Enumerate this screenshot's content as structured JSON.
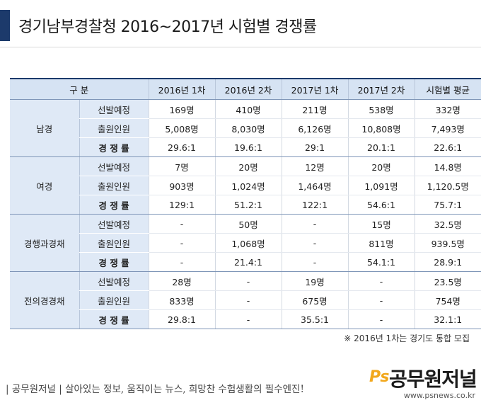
{
  "title": "경기남부경찰청 2016~2017년 시험별 경쟁률",
  "colors": {
    "accent": "#1c3a6b",
    "header_bg": "#d6e3f3",
    "group_bg": "#dfe9f6",
    "logo_orange": "#f2a81d"
  },
  "table": {
    "headers": [
      "구  분",
      "2016년 1차",
      "2016년 2차",
      "2017년 1차",
      "2017년 2차",
      "시험별 평균"
    ],
    "groups": [
      {
        "name": "남경",
        "rows": [
          {
            "label": "선발예정",
            "values": [
              "169명",
              "410명",
              "211명",
              "538명",
              "332명"
            ]
          },
          {
            "label": "출원인원",
            "values": [
              "5,008명",
              "8,030명",
              "6,126명",
              "10,808명",
              "7,493명"
            ]
          },
          {
            "label": "경 쟁 률",
            "values": [
              "29.6:1",
              "19.6:1",
              "29:1",
              "20.1:1",
              "22.6:1"
            ]
          }
        ]
      },
      {
        "name": "여경",
        "rows": [
          {
            "label": "선발예정",
            "values": [
              "7명",
              "20명",
              "12명",
              "20명",
              "14.8명"
            ]
          },
          {
            "label": "출원인원",
            "values": [
              "903명",
              "1,024명",
              "1,464명",
              "1,091명",
              "1,120.5명"
            ]
          },
          {
            "label": "경 쟁 률",
            "values": [
              "129:1",
              "51.2:1",
              "122:1",
              "54.6:1",
              "75.7:1"
            ]
          }
        ]
      },
      {
        "name": "경행과경채",
        "rows": [
          {
            "label": "선발예정",
            "values": [
              "-",
              "50명",
              "-",
              "15명",
              "32.5명"
            ]
          },
          {
            "label": "출원인원",
            "values": [
              "-",
              "1,068명",
              "-",
              "811명",
              "939.5명"
            ]
          },
          {
            "label": "경 쟁 률",
            "values": [
              "-",
              "21.4:1",
              "-",
              "54.1:1",
              "28.9:1"
            ]
          }
        ]
      },
      {
        "name": "전의경경채",
        "rows": [
          {
            "label": "선발예정",
            "values": [
              "28명",
              "-",
              "19명",
              "-",
              "23.5명"
            ]
          },
          {
            "label": "출원인원",
            "values": [
              "833명",
              "-",
              "675명",
              "-",
              "754명"
            ]
          },
          {
            "label": "경 쟁 률",
            "values": [
              "29.8:1",
              "-",
              "35.5:1",
              "-",
              "32.1:1"
            ]
          }
        ]
      }
    ]
  },
  "note": "※ 2016년 1차는 경기도 통합 모집",
  "footer": {
    "slogan": "| 공무원저널 | 살아있는 정보, 움직이는 뉴스, 희망찬 수험생활의 필수엔진!",
    "logo_ps": "Ps",
    "logo_name": "공무원저널",
    "url": "www.psnews.co.kr"
  },
  "watermark": {
    "ps": "Ps",
    "name": "공무원저널"
  }
}
